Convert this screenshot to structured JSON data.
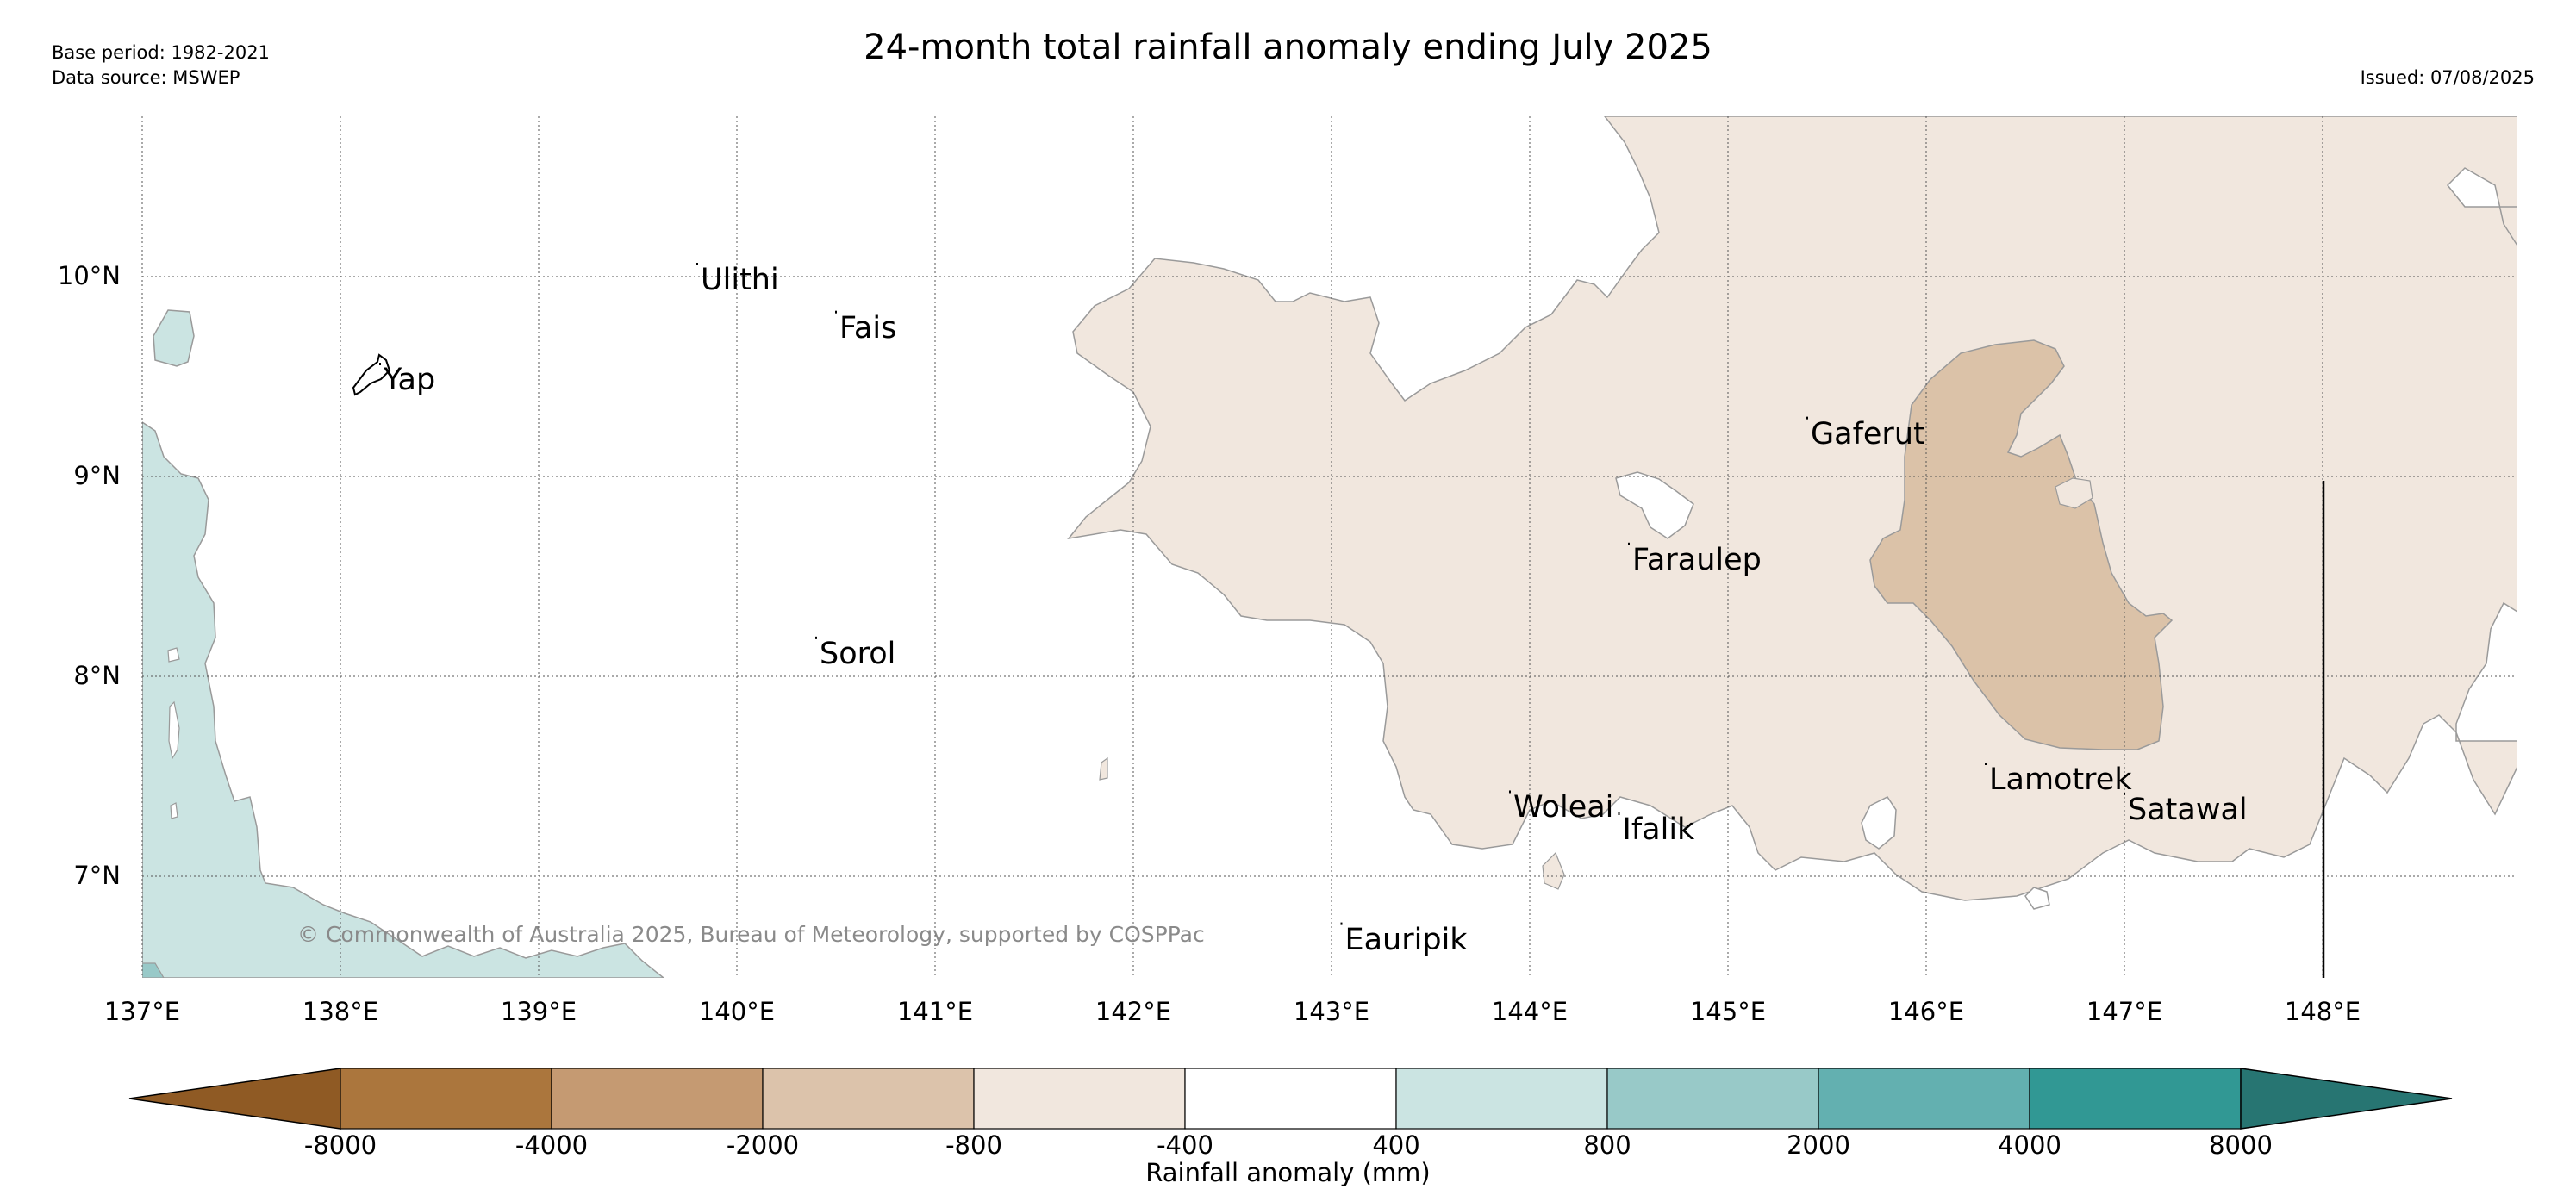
{
  "header": {
    "base_period": "Base period: 1982-2021",
    "data_source": "Data source: MSWEP",
    "title": "24-month total rainfall anomaly ending July 2025",
    "issued": "Issued: 07/08/2025"
  },
  "map": {
    "lon_ticks": [
      "137°E",
      "138°E",
      "139°E",
      "140°E",
      "141°E",
      "142°E",
      "143°E",
      "144°E",
      "145°E",
      "146°E",
      "147°E",
      "148°E"
    ],
    "lat_ticks": [
      "10°N",
      "9°N",
      "8°N",
      "7°N"
    ],
    "places": [
      {
        "name": "Yap",
        "lon": 138.2,
        "lat": 9.5
      },
      {
        "name": "Ulithi",
        "lon": 139.8,
        "lat": 10.0
      },
      {
        "name": "Fais",
        "lon": 140.5,
        "lat": 9.76
      },
      {
        "name": "Sorol",
        "lon": 140.4,
        "lat": 8.13
      },
      {
        "name": "Gaferut",
        "lon": 145.4,
        "lat": 9.23
      },
      {
        "name": "Faraulep",
        "lon": 144.5,
        "lat": 8.6
      },
      {
        "name": "Woleai",
        "lon": 143.9,
        "lat": 7.36
      },
      {
        "name": "Ifalik",
        "lon": 144.45,
        "lat": 7.25
      },
      {
        "name": "Lamotrek",
        "lon": 146.3,
        "lat": 7.5
      },
      {
        "name": "Satawal",
        "lon": 147.0,
        "lat": 7.35
      },
      {
        "name": "Eauripik",
        "lon": 143.05,
        "lat": 6.7
      }
    ],
    "credit": "© Commonwealth of Australia 2025, Bureau of Meteorology, supported by COSPPac"
  },
  "legend": {
    "label": "Rainfall anomaly (mm)",
    "ticks": [
      "-8000",
      "-4000",
      "-2000",
      "-800",
      "-400",
      "400",
      "800",
      "2000",
      "4000",
      "8000"
    ],
    "colors": [
      "#8f5a24",
      "#ab763d",
      "#c59a72",
      "#dcc3ab",
      "#f1e7de",
      "#ffffff",
      "#cbe4e2",
      "#98c9c8",
      "#63b0b0",
      "#319894",
      "#277572"
    ]
  }
}
